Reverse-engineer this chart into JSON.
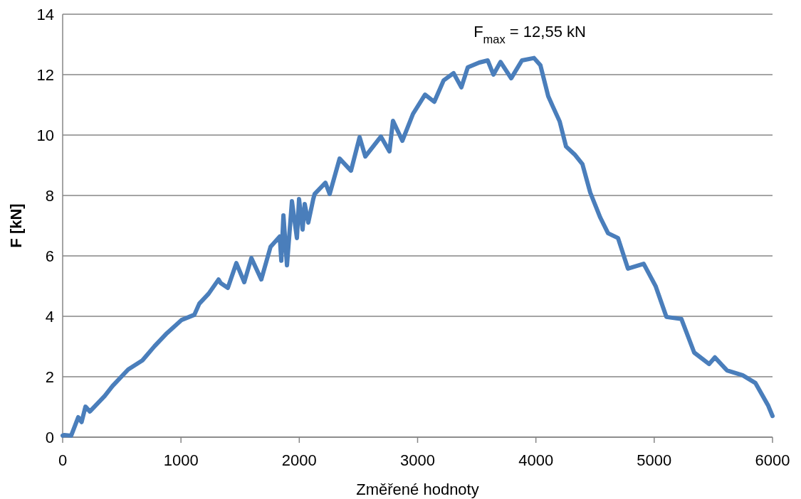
{
  "chart_data": {
    "type": "line",
    "xlabel": "Změřené hodnoty",
    "ylabel": "F [kN]",
    "xlim": [
      0,
      6000
    ],
    "xticks": [
      0,
      1000,
      2000,
      3000,
      4000,
      5000,
      6000
    ],
    "ylim": [
      0,
      14
    ],
    "yticks": [
      0,
      2,
      4,
      6,
      8,
      10,
      12,
      14
    ],
    "grid": "y",
    "marker": "none",
    "line_style": "solid",
    "annotations": [
      {
        "text": "F$_{max}$ = 12,55 kN",
        "x": 3984,
        "y": 12.55
      }
    ],
    "series": [
      {
        "color": "#4a7ebb",
        "x": [
          0,
          12,
          72,
          132,
          160,
          193,
          230,
          355,
          421,
          554,
          674,
          776,
          873,
          1005,
          1113,
          1155,
          1234,
          1318,
          1336,
          1396,
          1468,
          1535,
          1595,
          1679,
          1757,
          1835,
          1848,
          1866,
          1896,
          1938,
          1980,
          1998,
          2028,
          2046,
          2076,
          2118,
          2130,
          2221,
          2257,
          2341,
          2437,
          2510,
          2558,
          2690,
          2762,
          2792,
          2871,
          2961,
          3063,
          3141,
          3220,
          3304,
          3370,
          3424,
          3521,
          3593,
          3641,
          3701,
          3791,
          3882,
          3984,
          4038,
          4104,
          4146,
          4201,
          4255,
          4327,
          4393,
          4459,
          4544,
          4610,
          4694,
          4778,
          4911,
          5013,
          5103,
          5230,
          5338,
          5464,
          5513,
          5615,
          5747,
          5856,
          5964,
          6000
        ],
        "values": [
          0.05,
          0.07,
          0.05,
          0.66,
          0.5,
          1.01,
          0.85,
          1.36,
          1.69,
          2.24,
          2.54,
          3.01,
          3.41,
          3.88,
          4.05,
          4.42,
          4.75,
          5.22,
          5.1,
          4.94,
          5.76,
          5.13,
          5.93,
          5.22,
          6.3,
          6.64,
          5.84,
          7.34,
          5.69,
          7.81,
          6.59,
          7.88,
          6.87,
          7.72,
          7.1,
          7.88,
          8.05,
          8.42,
          8.05,
          9.22,
          8.82,
          9.93,
          9.29,
          9.95,
          9.46,
          10.47,
          9.81,
          10.7,
          11.34,
          11.1,
          11.81,
          12.05,
          11.58,
          12.24,
          12.4,
          12.47,
          12,
          12.42,
          11.88,
          12.47,
          12.55,
          12.31,
          11.29,
          10.92,
          10.45,
          9.62,
          9.36,
          9.04,
          8.1,
          7.27,
          6.75,
          6.59,
          5.58,
          5.74,
          4.99,
          3.98,
          3.91,
          2.8,
          2.42,
          2.64,
          2.21,
          2.05,
          1.79,
          1.04,
          0.7
        ]
      }
    ]
  }
}
